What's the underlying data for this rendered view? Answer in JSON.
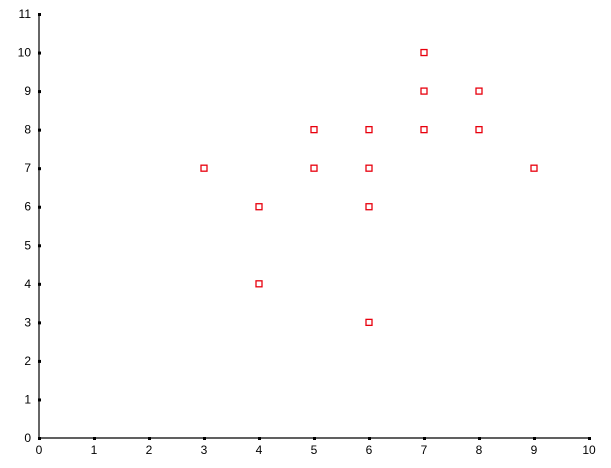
{
  "chart_data": {
    "type": "scatter",
    "title": "",
    "xlabel": "",
    "ylabel": "",
    "xlim": [
      0,
      10
    ],
    "ylim": [
      0,
      11
    ],
    "xticks": [
      0,
      1,
      2,
      3,
      4,
      5,
      6,
      7,
      8,
      9,
      10
    ],
    "yticks": [
      0,
      1,
      2,
      3,
      4,
      5,
      6,
      7,
      8,
      9,
      10,
      11
    ],
    "grid": false,
    "marker": "hollow-square",
    "marker_color": "#e8000d",
    "points": [
      {
        "x": 3,
        "y": 7
      },
      {
        "x": 4,
        "y": 6
      },
      {
        "x": 4,
        "y": 4
      },
      {
        "x": 5,
        "y": 8
      },
      {
        "x": 5,
        "y": 7
      },
      {
        "x": 6,
        "y": 8
      },
      {
        "x": 6,
        "y": 7
      },
      {
        "x": 6,
        "y": 6
      },
      {
        "x": 6,
        "y": 3
      },
      {
        "x": 7,
        "y": 10
      },
      {
        "x": 7,
        "y": 9
      },
      {
        "x": 7,
        "y": 8
      },
      {
        "x": 8,
        "y": 9
      },
      {
        "x": 8,
        "y": 8
      },
      {
        "x": 9,
        "y": 7
      }
    ]
  }
}
